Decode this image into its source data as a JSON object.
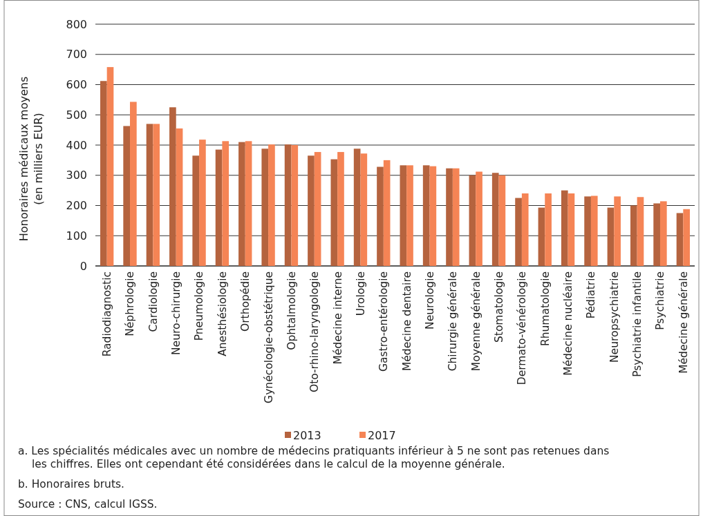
{
  "chart_data": {
    "type": "bar",
    "ylabel": "Honoraires médicaux moyens\n(en milliers EUR)",
    "categories": [
      "Radiodiagnostic",
      "Néphrologie",
      "Cardiologie",
      "Neuro-chirurgie",
      "Pneumologie",
      "Anesthésiologie",
      "Orthopédie",
      "Gynécologie-obstétrique",
      "Ophtalmologie",
      "Oto-rhino-laryngologie",
      "Médecine interne",
      "Urologie",
      "Gastro-entérologie",
      "Médecine dentaire",
      "Neurologie",
      "Chirurgie générale",
      "Moyenne générale",
      "Stomatologie",
      "Dermato-vénérologie",
      "Rhumatologie",
      "Médecine nucléaire",
      "Pédiatrie",
      "Neuropsychiatrie",
      "Psychiatrie infantile",
      "Psychiatrie",
      "Médecine générale"
    ],
    "series": [
      {
        "name": "2013",
        "color": "#b5633e",
        "values": [
          612,
          463,
          470,
          525,
          365,
          385,
          410,
          388,
          402,
          365,
          353,
          388,
          328,
          333,
          333,
          323,
          300,
          308,
          225,
          193,
          250,
          230,
          193,
          200,
          207,
          175
        ]
      },
      {
        "name": "2017",
        "color": "#f58455",
        "values": [
          658,
          543,
          470,
          455,
          418,
          413,
          413,
          402,
          400,
          377,
          377,
          372,
          350,
          333,
          330,
          323,
          312,
          300,
          240,
          240,
          240,
          232,
          230,
          228,
          214,
          188
        ]
      }
    ],
    "ylim": [
      0,
      800
    ],
    "yticks": [
      0,
      100,
      200,
      300,
      400,
      500,
      600,
      700,
      800
    ],
    "grid": "y",
    "legend": "bottom",
    "annotations": [
      "a.  Les spécialités médicales avec un nombre de médecins pratiquants inférieur à 5 ne sont pas retenues dans les chiffres. Elles ont cependant été considérées dans le calcul de la moyenne générale.",
      "b.  Honoraires bruts.",
      "Source : CNS, calcul IGSS."
    ]
  }
}
